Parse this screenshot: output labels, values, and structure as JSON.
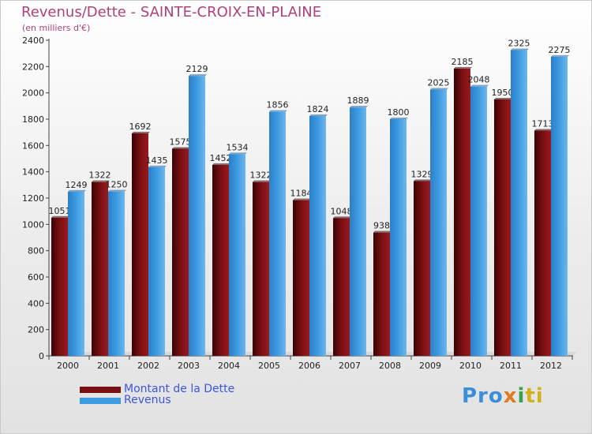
{
  "colors": {
    "debt": "#7a0f12",
    "revenue": "#3d9be2",
    "title": "#b0407a",
    "legend_text": "#3b55e0"
  },
  "chart_data": {
    "type": "bar",
    "title": "Revenus/Dette - SAINTE-CROIX-EN-PLAINE",
    "subtitle": "(en milliers d'€)",
    "xlabel": "",
    "ylabel": "",
    "ylim": [
      0,
      2400
    ],
    "yticks": [
      0,
      200,
      400,
      600,
      800,
      1000,
      1200,
      1400,
      1600,
      1800,
      2000,
      2200,
      2400
    ],
    "categories": [
      "2000",
      "2001",
      "2002",
      "2003",
      "2004",
      "2005",
      "2006",
      "2007",
      "2008",
      "2009",
      "2010",
      "2011",
      "2012"
    ],
    "series": [
      {
        "name": "Montant de la Dette",
        "color_key": "debt",
        "values": [
          1051,
          1322,
          1692,
          1575,
          1452,
          1322,
          1184,
          1048,
          938,
          1329,
          2185,
          1950,
          1713
        ],
        "labels": [
          "1051",
          "1322",
          "1692",
          "1575",
          "1452",
          "1322",
          "1184",
          "1048",
          "938",
          "1329",
          "2185",
          "1950",
          "1713"
        ]
      },
      {
        "name": "Revenus",
        "color_key": "revenue",
        "values": [
          1249,
          1250,
          1435,
          2129,
          1534,
          1856,
          1824,
          1889,
          1800,
          2025,
          2048,
          2325,
          2275
        ],
        "labels": [
          "1249",
          "1250",
          "1435",
          "2129",
          "1534",
          "1856",
          "1824",
          "1889",
          "1800",
          "2025",
          "2048",
          "2325",
          "2275"
        ]
      }
    ],
    "legend_position": "bottom-left",
    "grid": false
  },
  "logo": {
    "part1": "Pro",
    "part2": "x",
    "part3": "i",
    "part4": "ti"
  }
}
